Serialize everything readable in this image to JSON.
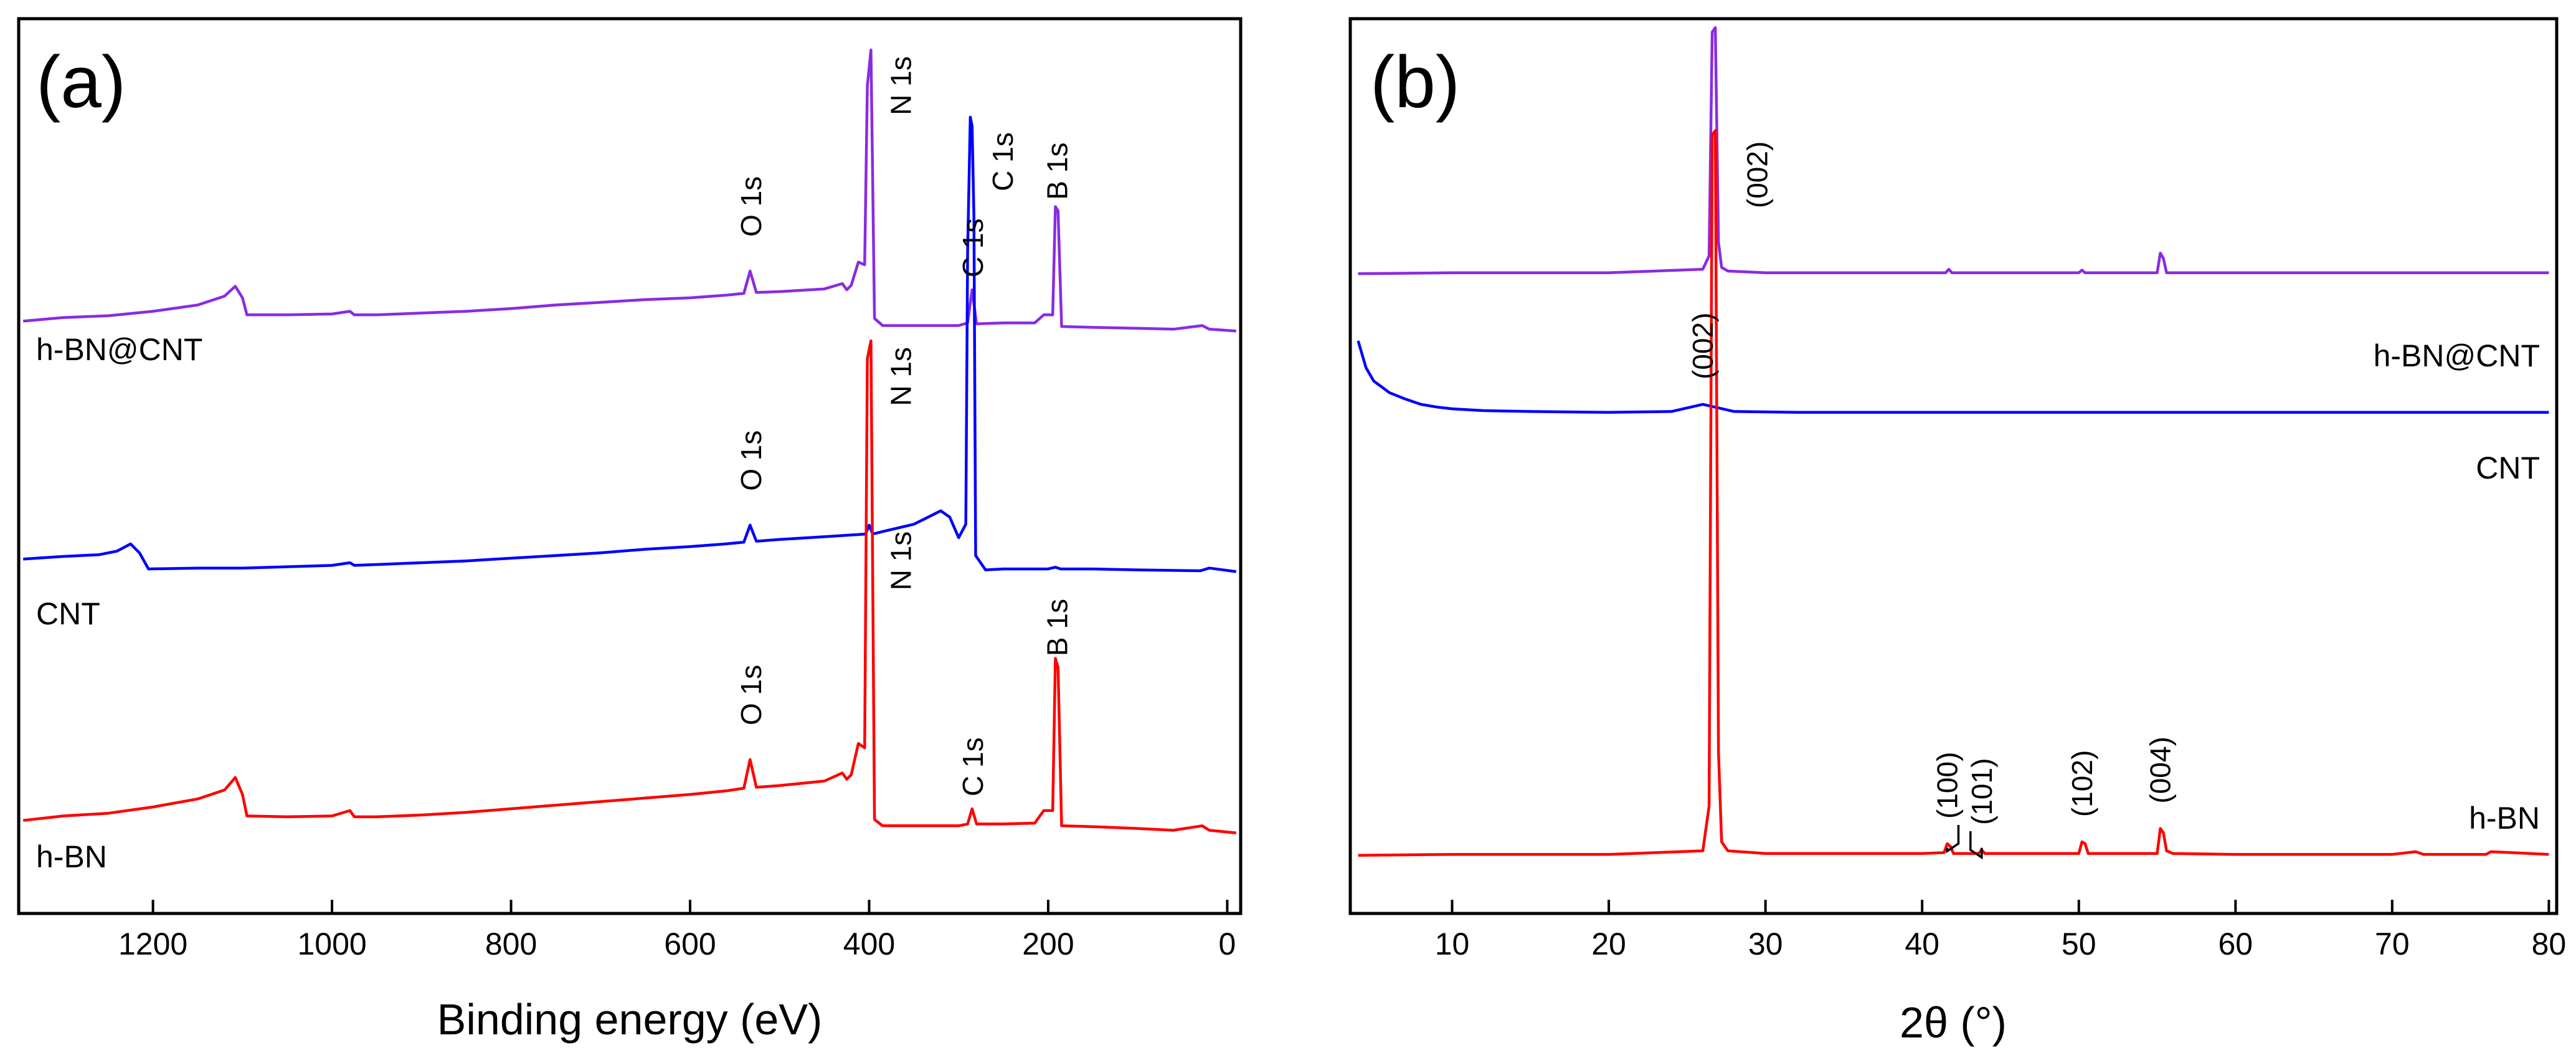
{
  "chart_data": [
    {
      "panel_label": "(a)",
      "type": "line",
      "xlabel": "Binding energy (eV)",
      "ylabel": "",
      "xlim": [
        1350,
        -15
      ],
      "ylim": [
        0,
        1
      ],
      "x_reversed": true,
      "x_ticks": [
        1200,
        1000,
        800,
        600,
        400,
        200,
        0
      ],
      "x_tick_labels": [
        "1200",
        "1000",
        "800",
        "600",
        "400",
        "200",
        "0"
      ],
      "y_ticks": [],
      "series": [
        {
          "name": "h-BN@CNT",
          "color": "#8a2be2",
          "baseline": 0.66,
          "x": [
            1345,
            1300,
            1250,
            1200,
            1150,
            1120,
            1108,
            1100,
            1095,
            1050,
            1000,
            980,
            975,
            950,
            900,
            850,
            800,
            750,
            700,
            650,
            600,
            560,
            540,
            533,
            526,
            500,
            450,
            430,
            425,
            420,
            412,
            405,
            402,
            398,
            394,
            385,
            340,
            300,
            290,
            285,
            280,
            250,
            215,
            205,
            195,
            192,
            189,
            185,
            150,
            100,
            60,
            28,
            20,
            -10
          ],
          "y": [
            0.662,
            0.666,
            0.668,
            0.673,
            0.68,
            0.69,
            0.701,
            0.688,
            0.669,
            0.669,
            0.67,
            0.673,
            0.669,
            0.669,
            0.671,
            0.673,
            0.676,
            0.68,
            0.683,
            0.686,
            0.688,
            0.691,
            0.693,
            0.718,
            0.694,
            0.695,
            0.698,
            0.704,
            0.697,
            0.702,
            0.728,
            0.725,
            0.925,
            0.965,
            0.665,
            0.657,
            0.657,
            0.657,
            0.66,
            0.697,
            0.659,
            0.66,
            0.66,
            0.669,
            0.669,
            0.79,
            0.785,
            0.656,
            0.655,
            0.654,
            0.653,
            0.657,
            0.653,
            0.651
          ],
          "peaks": [
            {
              "label": "O 1s",
              "x": 532
            },
            {
              "label": "N 1s",
              "x": 398
            },
            {
              "label": "C 1s",
              "x": 284
            },
            {
              "label": "B 1s",
              "x": 190
            }
          ]
        },
        {
          "name": "CNT",
          "color": "#0000ff",
          "baseline": 0.395,
          "x": [
            1345,
            1300,
            1260,
            1240,
            1225,
            1215,
            1205,
            1150,
            1100,
            1000,
            980,
            975,
            950,
            900,
            850,
            800,
            750,
            700,
            650,
            600,
            560,
            540,
            533,
            526,
            500,
            450,
            404,
            400,
            396,
            380,
            350,
            320,
            310,
            300,
            292,
            290,
            287,
            285,
            283,
            281,
            270,
            250,
            200,
            192,
            186,
            150,
            100,
            30,
            20,
            -10
          ],
          "y": [
            0.396,
            0.399,
            0.401,
            0.405,
            0.413,
            0.403,
            0.385,
            0.386,
            0.386,
            0.389,
            0.392,
            0.389,
            0.39,
            0.392,
            0.394,
            0.397,
            0.4,
            0.403,
            0.407,
            0.41,
            0.413,
            0.415,
            0.434,
            0.416,
            0.418,
            0.421,
            0.424,
            0.434,
            0.424,
            0.428,
            0.435,
            0.45,
            0.443,
            0.42,
            0.435,
            0.74,
            0.89,
            0.88,
            0.78,
            0.4,
            0.384,
            0.385,
            0.385,
            0.387,
            0.385,
            0.385,
            0.384,
            0.383,
            0.386,
            0.382
          ],
          "peaks": [
            {
              "label": "O 1s",
              "x": 532
            },
            {
              "label": "N 1s",
              "x": 398
            },
            {
              "label": "C 1s",
              "x": 284
            }
          ]
        },
        {
          "name": "h-BN",
          "color": "#ff0000",
          "baseline": 0.1,
          "x": [
            1345,
            1300,
            1250,
            1200,
            1150,
            1120,
            1108,
            1100,
            1095,
            1050,
            1000,
            980,
            975,
            950,
            900,
            850,
            800,
            750,
            700,
            650,
            600,
            560,
            540,
            533,
            526,
            500,
            450,
            430,
            425,
            420,
            412,
            405,
            402,
            398,
            394,
            385,
            340,
            300,
            290,
            285,
            280,
            250,
            215,
            205,
            195,
            192,
            189,
            185,
            150,
            100,
            60,
            28,
            20,
            -10
          ],
          "y": [
            0.104,
            0.109,
            0.112,
            0.119,
            0.128,
            0.138,
            0.152,
            0.133,
            0.109,
            0.108,
            0.109,
            0.115,
            0.108,
            0.108,
            0.11,
            0.113,
            0.117,
            0.121,
            0.125,
            0.129,
            0.133,
            0.137,
            0.14,
            0.172,
            0.141,
            0.143,
            0.148,
            0.157,
            0.15,
            0.155,
            0.19,
            0.185,
            0.62,
            0.64,
            0.105,
            0.098,
            0.098,
            0.098,
            0.1,
            0.117,
            0.1,
            0.1,
            0.101,
            0.115,
            0.115,
            0.285,
            0.275,
            0.098,
            0.097,
            0.095,
            0.093,
            0.098,
            0.093,
            0.09
          ],
          "peaks": [
            {
              "label": "O 1s",
              "x": 532
            },
            {
              "label": "N 1s",
              "x": 398
            },
            {
              "label": "C 1s",
              "x": 284
            },
            {
              "label": "B 1s",
              "x": 190
            }
          ]
        }
      ]
    },
    {
      "panel_label": "(b)",
      "type": "line",
      "xlabel": "2θ (°)",
      "ylabel": "",
      "xlim": [
        3.5,
        80.5
      ],
      "ylim": [
        0,
        1
      ],
      "x_reversed": false,
      "x_ticks": [
        10,
        20,
        30,
        40,
        50,
        60,
        70,
        80
      ],
      "x_tick_labels": [
        "10",
        "20",
        "30",
        "40",
        "50",
        "60",
        "70",
        "80"
      ],
      "y_ticks": [],
      "series": [
        {
          "name": "h-BN@CNT",
          "color": "#8a2be2",
          "baseline": 0.715,
          "x": [
            4,
            10,
            20,
            26,
            26.4,
            26.6,
            26.8,
            27.0,
            27.2,
            27.6,
            30,
            40,
            41.5,
            41.7,
            41.9,
            44,
            50,
            50.2,
            50.4,
            55,
            55.2,
            55.4,
            55.6,
            56,
            60,
            70,
            80
          ],
          "y": [
            0.715,
            0.716,
            0.716,
            0.72,
            0.735,
            0.985,
            0.99,
            0.75,
            0.722,
            0.718,
            0.716,
            0.716,
            0.716,
            0.72,
            0.716,
            0.716,
            0.716,
            0.719,
            0.716,
            0.716,
            0.738,
            0.732,
            0.716,
            0.716,
            0.716,
            0.716,
            0.716
          ],
          "peaks": []
        },
        {
          "name": "CNT",
          "color": "#0000ff",
          "baseline": 0.56,
          "x": [
            4,
            4.5,
            5,
            6,
            7,
            8,
            9,
            10,
            12,
            15,
            20,
            24,
            25.5,
            26,
            26.5,
            28,
            32,
            40,
            50,
            60,
            70,
            80
          ],
          "y": [
            0.64,
            0.61,
            0.595,
            0.582,
            0.575,
            0.569,
            0.566,
            0.564,
            0.562,
            0.561,
            0.56,
            0.561,
            0.567,
            0.569,
            0.567,
            0.561,
            0.56,
            0.56,
            0.56,
            0.56,
            0.56,
            0.56
          ],
          "peaks": [
            {
              "label": "(002)",
              "x": 26
            }
          ]
        },
        {
          "name": "h-BN",
          "color": "#ff0000",
          "baseline": 0.065,
          "x": [
            4,
            10,
            20,
            26,
            26.4,
            26.6,
            26.8,
            27.0,
            27.2,
            27.6,
            30,
            40,
            41.4,
            41.6,
            41.8,
            42.0,
            43.6,
            43.8,
            44.0,
            50,
            50.2,
            50.4,
            50.6,
            55,
            55.2,
            55.4,
            55.6,
            56,
            60,
            70,
            71.5,
            72,
            76,
            76.3,
            80
          ],
          "y": [
            0.065,
            0.066,
            0.066,
            0.07,
            0.12,
            0.87,
            0.875,
            0.18,
            0.08,
            0.07,
            0.067,
            0.067,
            0.068,
            0.078,
            0.075,
            0.067,
            0.067,
            0.071,
            0.067,
            0.067,
            0.08,
            0.078,
            0.067,
            0.067,
            0.095,
            0.09,
            0.07,
            0.067,
            0.066,
            0.066,
            0.069,
            0.066,
            0.066,
            0.069,
            0.066
          ],
          "peaks": [
            {
              "label": "(002)",
              "x": 26.7
            },
            {
              "label": "(100)",
              "x": 41.6
            },
            {
              "label": "(101)",
              "x": 43.8
            },
            {
              "label": "(102)",
              "x": 50.2
            },
            {
              "label": "(004)",
              "x": 55.2
            }
          ]
        }
      ]
    }
  ]
}
